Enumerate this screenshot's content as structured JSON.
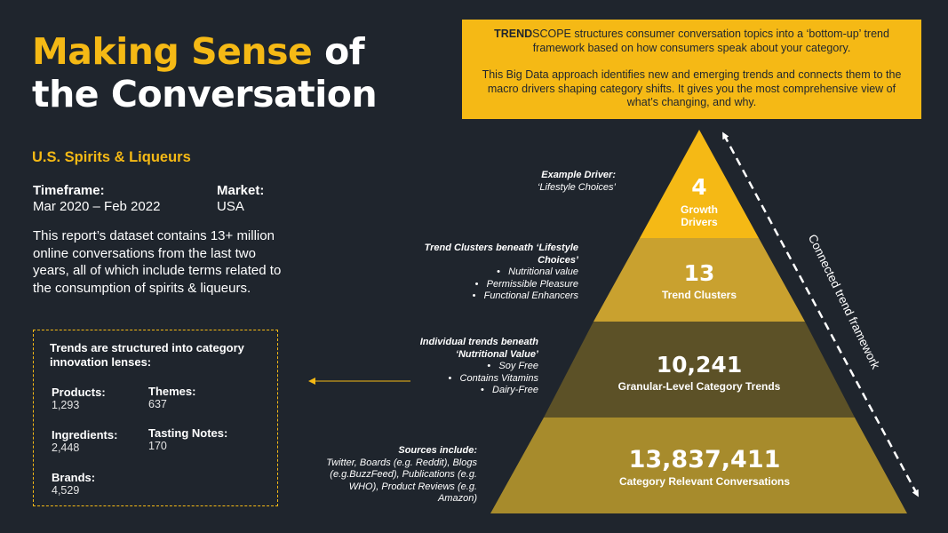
{
  "title": {
    "accent": "Making Sense",
    "line1_rest": "of",
    "line2": "the Conversation"
  },
  "subtitle": "U.S. Spirits & Liqueurs",
  "timeframe": {
    "label": "Timeframe:",
    "value": "Mar 2020 – Feb 2022"
  },
  "market": {
    "label": "Market:",
    "value": "USA"
  },
  "description": "This report’s dataset contains 13+ million online conversations from the last two years, all of which include terms related to the consumption of spirits & liqueurs.",
  "lenses": {
    "heading": "Trends are structured into category innovation lenses:",
    "items": [
      {
        "label": "Products:",
        "value": "1,293"
      },
      {
        "label": "Themes:",
        "value": "637"
      },
      {
        "label": "Ingredients:",
        "value": "2,448"
      },
      {
        "label": "Tasting Notes:",
        "value": "170"
      },
      {
        "label": "Brands:",
        "value": "4,529"
      }
    ]
  },
  "info_box": {
    "brand_bold": "TREND",
    "brand_rest": "SCOPE",
    "p1_rest": " structures consumer conversation topics into a ‘bottom-up’ trend framework based on how consumers speak about your category.",
    "p2": "This Big Data approach identifies new and emerging trends and connects them to the macro drivers shaping category shifts. It gives you the most comprehensive view of what’s changing, and why."
  },
  "pyramid": {
    "tiers": [
      {
        "number": "4",
        "label": "Growth Drivers",
        "color": "#f5b915"
      },
      {
        "number": "13",
        "label": "Trend Clusters",
        "color": "#c9a12f"
      },
      {
        "number": "10,241",
        "label": "Granular-Level Category Trends",
        "color": "#5c5127"
      },
      {
        "number": "13,837,411",
        "label": "Category Relevant Conversations",
        "color": "#a78b2c"
      }
    ]
  },
  "annotations": {
    "driver": {
      "title": "Example Driver:",
      "text": "‘Lifestyle Choices’"
    },
    "clusters": {
      "title": "Trend Clusters beneath ‘Lifestyle Choices’",
      "items": [
        "Nutritional value",
        "Permissible Pleasure",
        "Functional Enhancers"
      ]
    },
    "trends": {
      "title": "Individual trends beneath ‘Nutritional Value’",
      "items": [
        "Soy Free",
        "Contains Vitamins",
        "Dairy-Free"
      ]
    },
    "sources": {
      "title": "Sources include:",
      "text": "Twitter, Boards (e.g. Reddit), Blogs (e.g.BuzzFeed), Publications (e.g. WHO), Product Reviews (e.g. Amazon)"
    }
  },
  "connected_label": "Connected trend framework",
  "colors": {
    "background": "#1f252d",
    "accent": "#f5b915"
  }
}
